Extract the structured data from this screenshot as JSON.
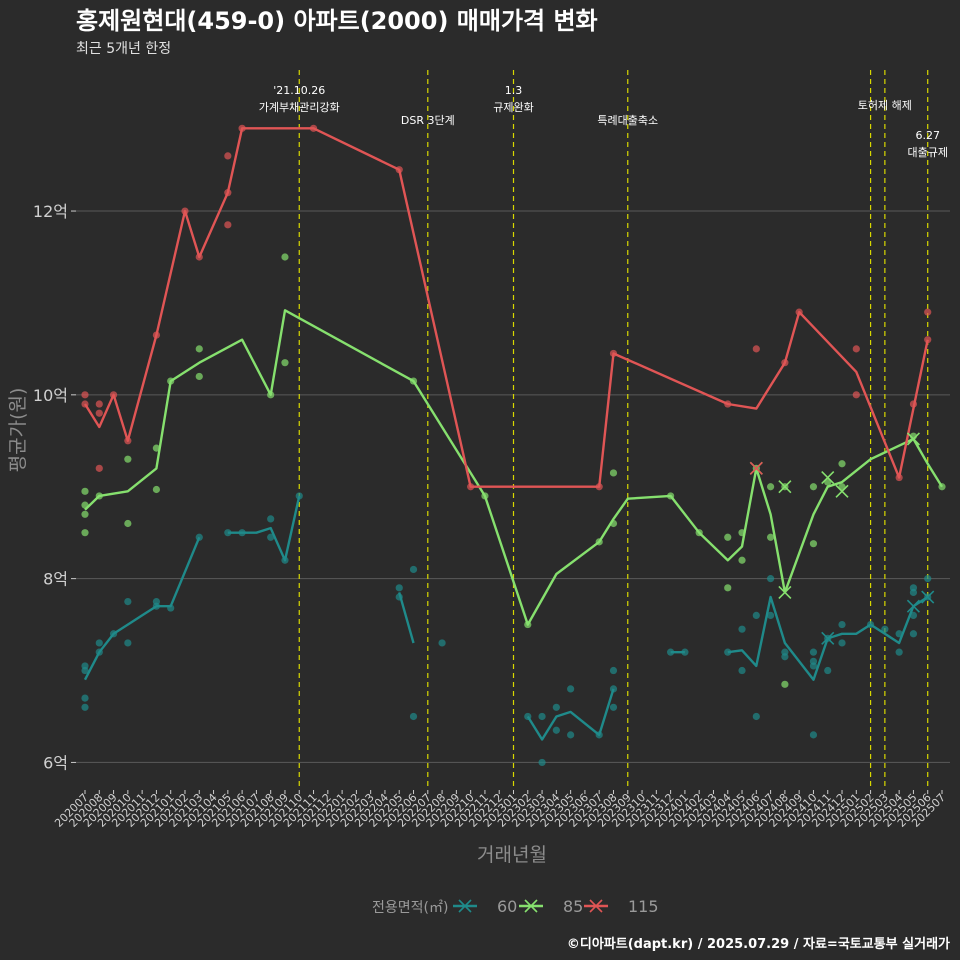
{
  "colors": {
    "background": "#2b2b2b",
    "grid": "#5a5a5a",
    "vline": "#d8d800",
    "title": "#ffffff",
    "axis_text": "#d0d0d0",
    "axis_title": "#8c8c8c",
    "s60": "#1f8a8a",
    "s85": "#86e06e",
    "s115": "#e05555"
  },
  "chart_data": {
    "type": "line",
    "title": "홍제원현대(459-0) 아파트(2000) 매매가격 변화",
    "subtitle": "최근 5개년 한정",
    "xlabel": "거래년월",
    "ylabel": "평균가(원)",
    "ylim": [
      5.7,
      13.6
    ],
    "yticks": [
      {
        "v": 6,
        "label": "6억"
      },
      {
        "v": 8,
        "label": "8억"
      },
      {
        "v": 10,
        "label": "10억"
      },
      {
        "v": 12,
        "label": "12억"
      }
    ],
    "x_start": "2020-07",
    "x_ticks": [
      "202007",
      "202008",
      "202009",
      "202010",
      "202011",
      "202012",
      "202101",
      "202102",
      "202103",
      "202104",
      "202105",
      "202106",
      "202107",
      "202108",
      "202109",
      "202110",
      "202111",
      "202112",
      "202201",
      "202202",
      "202203",
      "202204",
      "202205",
      "202206",
      "202207",
      "202208",
      "202209",
      "202210",
      "202211",
      "202212",
      "202301",
      "202302",
      "202303",
      "202304",
      "202305",
      "202306",
      "202307",
      "202308",
      "202309",
      "202310",
      "202311",
      "202312",
      "202401",
      "202402",
      "202403",
      "202404",
      "202405",
      "202406",
      "202407",
      "202408",
      "202409",
      "202410",
      "202411",
      "202412",
      "202501",
      "202502",
      "202503",
      "202504",
      "202505",
      "202506",
      "202507"
    ],
    "grid": true,
    "legend": {
      "title": "전용면적(㎡)",
      "position": "bottom",
      "items": [
        "60",
        "85",
        "115"
      ]
    },
    "events": [
      {
        "x": "2021-10",
        "lines": [
          "'21.10.26",
          "가계부채관리강화"
        ],
        "row": 0
      },
      {
        "x": "2022-07",
        "lines": [
          "DSR 3단계"
        ],
        "row": 1
      },
      {
        "x": "2023-01",
        "lines": [
          "1.3",
          "규제완화"
        ],
        "row": 0
      },
      {
        "x": "2023-09",
        "lines": [
          "특례대출축소"
        ],
        "row": 1
      },
      {
        "x": "2025-02",
        "lines": [],
        "row": 0
      },
      {
        "x": "2025-03",
        "lines": [
          "토허제 해제"
        ],
        "row": 0.5
      },
      {
        "x": "2025-06",
        "lines": [
          "6.27",
          "대출규제"
        ],
        "row": 1.5
      }
    ],
    "series": [
      {
        "name": "60",
        "segments": [
          [
            [
              "2020-07",
              6.9
            ],
            [
              "2020-08",
              7.2
            ],
            [
              "2020-09",
              7.4
            ],
            [
              "2020-10",
              7.5
            ],
            [
              "2020-11",
              7.6
            ],
            [
              "2020-12",
              7.7
            ],
            [
              "2021-01",
              7.7
            ],
            [
              "2021-03",
              8.45
            ]
          ],
          [
            [
              "2021-05",
              8.5
            ],
            [
              "2021-06",
              8.5
            ],
            [
              "2021-07",
              8.5
            ],
            [
              "2021-08",
              8.55
            ],
            [
              "2021-09",
              8.2
            ],
            [
              "2021-10",
              8.9
            ]
          ],
          [
            [
              "2022-05",
              7.85
            ],
            [
              "2022-06",
              7.3
            ]
          ],
          [
            [
              "2023-02",
              6.5
            ],
            [
              "2023-03",
              6.25
            ],
            [
              "2023-04",
              6.5
            ],
            [
              "2023-05",
              6.55
            ],
            [
              "2023-07",
              6.3
            ],
            [
              "2023-08",
              6.8
            ]
          ],
          [
            [
              "2023-12",
              7.2
            ],
            [
              "2024-01",
              7.2
            ]
          ],
          [
            [
              "2024-04",
              7.2
            ],
            [
              "2024-05",
              7.22
            ],
            [
              "2024-06",
              7.05
            ],
            [
              "2024-07",
              7.8
            ],
            [
              "2024-08",
              7.3
            ],
            [
              "2024-10",
              6.9
            ],
            [
              "2024-11",
              7.35
            ],
            [
              "2024-12",
              7.4
            ],
            [
              "2025-01",
              7.4
            ],
            [
              "2025-02",
              7.5
            ],
            [
              "2025-03",
              7.4
            ],
            [
              "2025-04",
              7.3
            ],
            [
              "2025-05",
              7.7
            ],
            [
              "2025-06",
              7.8
            ]
          ]
        ],
        "points": [
          [
            "2020-07",
            7.05
          ],
          [
            "2020-07",
            7.0
          ],
          [
            "2020-07",
            6.7
          ],
          [
            "2020-07",
            6.6
          ],
          [
            "2020-08",
            7.3
          ],
          [
            "2020-08",
            7.2
          ],
          [
            "2020-09",
            7.4
          ],
          [
            "2020-10",
            7.75
          ],
          [
            "2020-10",
            7.3
          ],
          [
            "2020-12",
            7.75
          ],
          [
            "2020-12",
            7.7
          ],
          [
            "2021-01",
            7.68
          ],
          [
            "2021-03",
            8.45
          ],
          [
            "2021-05",
            8.5
          ],
          [
            "2021-06",
            8.5
          ],
          [
            "2021-08",
            8.65
          ],
          [
            "2021-08",
            8.45
          ],
          [
            "2021-09",
            8.2
          ],
          [
            "2021-10",
            8.9
          ],
          [
            "2022-05",
            7.9
          ],
          [
            "2022-05",
            7.8
          ],
          [
            "2022-06",
            8.1
          ],
          [
            "2022-06",
            6.5
          ],
          [
            "2022-08",
            7.3
          ],
          [
            "2023-02",
            6.5
          ],
          [
            "2023-03",
            6.5
          ],
          [
            "2023-03",
            6.0
          ],
          [
            "2023-04",
            6.6
          ],
          [
            "2023-04",
            6.35
          ],
          [
            "2023-05",
            6.8
          ],
          [
            "2023-05",
            6.3
          ],
          [
            "2023-07",
            6.3
          ],
          [
            "2023-08",
            7.0
          ],
          [
            "2023-08",
            6.8
          ],
          [
            "2023-08",
            6.6
          ],
          [
            "2023-12",
            7.2
          ],
          [
            "2024-01",
            7.2
          ],
          [
            "2024-04",
            7.2
          ],
          [
            "2024-05",
            7.45
          ],
          [
            "2024-05",
            7.0
          ],
          [
            "2024-06",
            7.6
          ],
          [
            "2024-06",
            6.5
          ],
          [
            "2024-07",
            8.0
          ],
          [
            "2024-07",
            7.6
          ],
          [
            "2024-08",
            7.2
          ],
          [
            "2024-08",
            7.15
          ],
          [
            "2024-10",
            7.2
          ],
          [
            "2024-10",
            7.1
          ],
          [
            "2024-10",
            7.05
          ],
          [
            "2024-10",
            6.3
          ],
          [
            "2024-11",
            7.35
          ],
          [
            "2024-11",
            7.0
          ],
          [
            "2024-12",
            7.5
          ],
          [
            "2024-12",
            7.3
          ],
          [
            "2025-02",
            7.5
          ],
          [
            "2025-03",
            7.45
          ],
          [
            "2025-04",
            7.4
          ],
          [
            "2025-04",
            7.2
          ],
          [
            "2025-05",
            7.9
          ],
          [
            "2025-05",
            7.85
          ],
          [
            "2025-05",
            7.6
          ],
          [
            "2025-05",
            7.4
          ],
          [
            "2025-06",
            8.0
          ],
          [
            "2025-06",
            7.8
          ]
        ],
        "crosses": [
          [
            "2024-11",
            7.35
          ],
          [
            "2025-05",
            7.7
          ],
          [
            "2025-06",
            7.8
          ]
        ]
      },
      {
        "name": "85",
        "segments": [
          [
            [
              "2020-07",
              8.75
            ],
            [
              "2020-08",
              8.9
            ],
            [
              "2020-10",
              8.95
            ],
            [
              "2020-12",
              9.2
            ],
            [
              "2021-01",
              10.15
            ],
            [
              "2021-03",
              10.35
            ],
            [
              "2021-06",
              10.6
            ],
            [
              "2021-08",
              10.0
            ],
            [
              "2021-09",
              10.92
            ],
            [
              "2022-06",
              10.15
            ],
            [
              "2022-11",
              8.9
            ],
            [
              "2023-02",
              7.5
            ],
            [
              "2023-04",
              8.05
            ],
            [
              "2023-07",
              8.4
            ],
            [
              "2023-08",
              8.65
            ],
            [
              "2023-09",
              8.87
            ],
            [
              "2023-12",
              8.9
            ],
            [
              "2024-02",
              8.5
            ],
            [
              "2024-04",
              8.2
            ],
            [
              "2024-05",
              8.35
            ],
            [
              "2024-06",
              9.2
            ],
            [
              "2024-07",
              8.7
            ],
            [
              "2024-08",
              7.85
            ],
            [
              "2024-10",
              8.7
            ],
            [
              "2024-11",
              9.0
            ],
            [
              "2024-12",
              9.05
            ],
            [
              "2025-02",
              9.3
            ],
            [
              "2025-05",
              9.52
            ],
            [
              "2025-06",
              9.25
            ],
            [
              "2025-07",
              9.0
            ]
          ]
        ],
        "points": [
          [
            "2020-07",
            8.95
          ],
          [
            "2020-07",
            8.8
          ],
          [
            "2020-07",
            8.7
          ],
          [
            "2020-07",
            8.5
          ],
          [
            "2020-08",
            8.9
          ],
          [
            "2020-10",
            9.3
          ],
          [
            "2020-10",
            8.6
          ],
          [
            "2020-12",
            9.42
          ],
          [
            "2020-12",
            8.97
          ],
          [
            "2021-01",
            10.15
          ],
          [
            "2021-03",
            10.5
          ],
          [
            "2021-03",
            10.2
          ],
          [
            "2021-08",
            10.0
          ],
          [
            "2021-09",
            11.5
          ],
          [
            "2021-09",
            10.35
          ],
          [
            "2022-06",
            10.15
          ],
          [
            "2022-11",
            8.9
          ],
          [
            "2023-02",
            7.5
          ],
          [
            "2023-07",
            8.4
          ],
          [
            "2023-08",
            9.15
          ],
          [
            "2023-08",
            8.6
          ],
          [
            "2023-12",
            8.9
          ],
          [
            "2024-02",
            8.5
          ],
          [
            "2024-04",
            8.45
          ],
          [
            "2024-04",
            7.9
          ],
          [
            "2024-05",
            8.5
          ],
          [
            "2024-05",
            8.2
          ],
          [
            "2024-06",
            9.2
          ],
          [
            "2024-07",
            9.0
          ],
          [
            "2024-07",
            8.45
          ],
          [
            "2024-08",
            9.0
          ],
          [
            "2024-08",
            6.85
          ],
          [
            "2024-10",
            9.0
          ],
          [
            "2024-10",
            8.38
          ],
          [
            "2024-11",
            9.05
          ],
          [
            "2024-12",
            9.25
          ],
          [
            "2024-12",
            9.0
          ],
          [
            "2025-05",
            9.55
          ],
          [
            "2025-07",
            9.0
          ]
        ],
        "crosses": [
          [
            "2024-06",
            9.2
          ],
          [
            "2024-08",
            9.0
          ],
          [
            "2024-08",
            7.85
          ],
          [
            "2024-11",
            9.1
          ],
          [
            "2024-12",
            8.95
          ],
          [
            "2025-05",
            9.52
          ]
        ]
      },
      {
        "name": "115",
        "segments": [
          [
            [
              "2020-07",
              9.9
            ],
            [
              "2020-08",
              9.65
            ],
            [
              "2020-09",
              10.0
            ],
            [
              "2020-10",
              9.5
            ],
            [
              "2020-12",
              10.65
            ],
            [
              "2021-02",
              12.0
            ],
            [
              "2021-03",
              11.5
            ],
            [
              "2021-05",
              12.2
            ],
            [
              "2021-06",
              12.9
            ],
            [
              "2021-11",
              12.9
            ],
            [
              "2022-05",
              12.45
            ],
            [
              "2022-10",
              9.0
            ],
            [
              "2023-07",
              9.0
            ],
            [
              "2023-08",
              10.45
            ],
            [
              "2024-04",
              9.9
            ],
            [
              "2024-06",
              9.85
            ],
            [
              "2024-08",
              10.35
            ],
            [
              "2024-09",
              10.9
            ],
            [
              "2025-01",
              10.25
            ],
            [
              "2025-04",
              9.1
            ],
            [
              "2025-06",
              10.6
            ]
          ]
        ],
        "points": [
          [
            "2020-07",
            10.0
          ],
          [
            "2020-07",
            9.9
          ],
          [
            "2020-08",
            9.9
          ],
          [
            "2020-08",
            9.8
          ],
          [
            "2020-08",
            9.2
          ],
          [
            "2020-09",
            10.0
          ],
          [
            "2020-10",
            9.5
          ],
          [
            "2020-12",
            10.65
          ],
          [
            "2021-02",
            12.0
          ],
          [
            "2021-03",
            11.5
          ],
          [
            "2021-05",
            12.6
          ],
          [
            "2021-05",
            12.2
          ],
          [
            "2021-05",
            11.85
          ],
          [
            "2021-06",
            12.9
          ],
          [
            "2021-11",
            12.9
          ],
          [
            "2022-05",
            12.45
          ],
          [
            "2022-10",
            9.0
          ],
          [
            "2023-07",
            9.0
          ],
          [
            "2023-08",
            10.45
          ],
          [
            "2024-04",
            9.9
          ],
          [
            "2024-06",
            10.5
          ],
          [
            "2024-08",
            10.35
          ],
          [
            "2024-09",
            10.9
          ],
          [
            "2025-01",
            10.5
          ],
          [
            "2025-01",
            10.0
          ],
          [
            "2025-04",
            9.1
          ],
          [
            "2025-05",
            9.9
          ],
          [
            "2025-06",
            10.9
          ],
          [
            "2025-06",
            10.6
          ]
        ],
        "crosses": [
          [
            "2024-06",
            9.2
          ]
        ]
      }
    ]
  },
  "credit": "©디아파트(dapt.kr) / 2025.07.29 / 자료=국토교통부 실거래가"
}
